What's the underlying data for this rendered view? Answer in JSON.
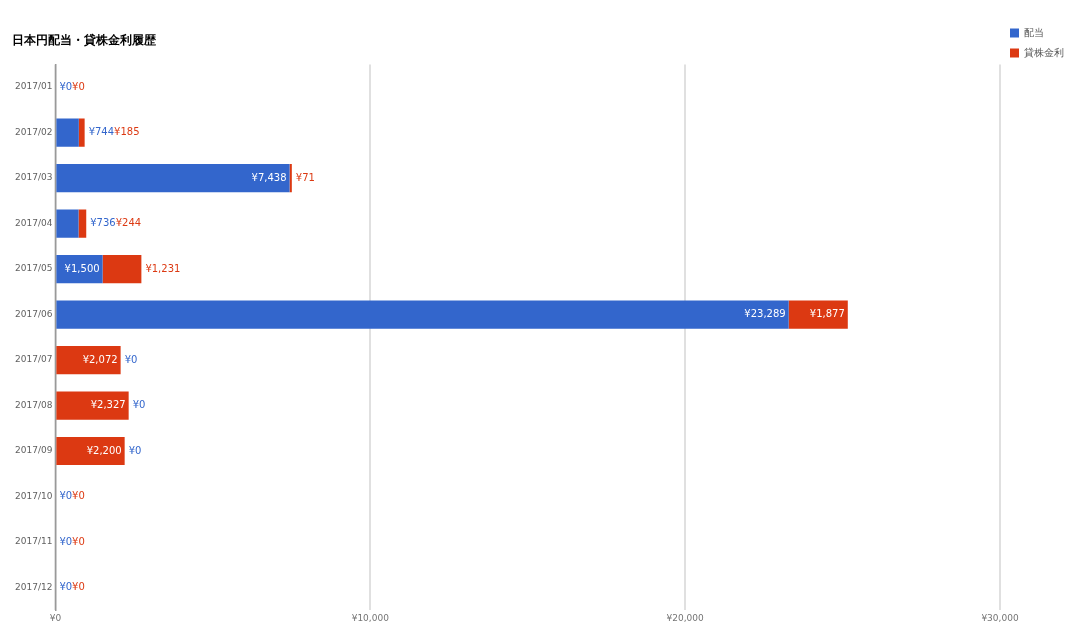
{
  "chart_data": {
    "type": "bar",
    "orientation": "horizontal",
    "stacked": true,
    "title": "日本円配当・貸株金利履歴",
    "categories": [
      "2017/01",
      "2017/02",
      "2017/03",
      "2017/04",
      "2017/05",
      "2017/06",
      "2017/07",
      "2017/08",
      "2017/09",
      "2017/10",
      "2017/11",
      "2017/12"
    ],
    "series": [
      {
        "name": "配当",
        "color": "#3366cc",
        "values": [
          0,
          744,
          7438,
          736,
          1500,
          23289,
          0,
          0,
          0,
          0,
          0,
          0
        ],
        "value_labels": [
          "¥0",
          "¥744",
          "¥7,438",
          "¥736",
          "¥1,500",
          "¥23,289",
          "¥0",
          "¥0",
          "¥0",
          "¥0",
          "¥0",
          "¥0"
        ]
      },
      {
        "name": "貸株金利",
        "color": "#dc3912",
        "values": [
          0,
          185,
          71,
          244,
          1231,
          1877,
          2072,
          2327,
          2200,
          0,
          0,
          0
        ],
        "value_labels": [
          "¥0",
          "¥185",
          "¥71",
          "¥244",
          "¥1,231",
          "¥1,877",
          "¥2,072",
          "¥2,327",
          "¥2,200",
          "¥0",
          "¥0",
          "¥0"
        ]
      }
    ],
    "xlim": [
      0,
      30000
    ],
    "xticks": [
      {
        "value": 0,
        "label": "¥0"
      },
      {
        "value": 10000,
        "label": "¥10,000"
      },
      {
        "value": 20000,
        "label": "¥20,000"
      },
      {
        "value": 30000,
        "label": "¥30,000"
      }
    ],
    "grid": "x",
    "legend": "top right"
  }
}
